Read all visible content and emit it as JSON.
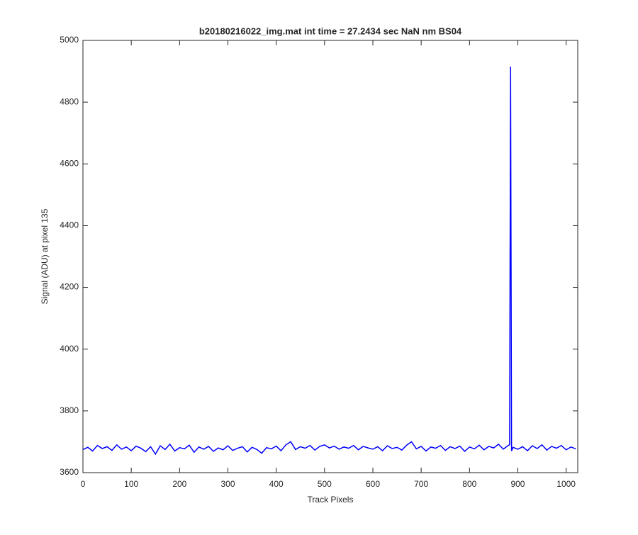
{
  "chart_data": {
    "type": "line",
    "title": "b20180216022_img.mat int time = 27.2434 sec  NaN nm BS04",
    "x_label": "Track Pixels",
    "y_label": "Signal (ADU) at pixel 135",
    "x": [
      0,
      10,
      20,
      30,
      40,
      50,
      60,
      70,
      80,
      90,
      100,
      110,
      120,
      130,
      140,
      150,
      160,
      170,
      180,
      190,
      200,
      210,
      220,
      230,
      240,
      250,
      260,
      270,
      280,
      290,
      300,
      310,
      320,
      330,
      340,
      350,
      360,
      370,
      380,
      390,
      400,
      410,
      420,
      430,
      440,
      450,
      460,
      470,
      480,
      490,
      500,
      510,
      520,
      530,
      540,
      550,
      560,
      570,
      580,
      590,
      600,
      610,
      620,
      630,
      640,
      650,
      660,
      670,
      680,
      690,
      700,
      710,
      720,
      730,
      740,
      750,
      760,
      770,
      780,
      790,
      800,
      810,
      820,
      830,
      840,
      850,
      860,
      870,
      880,
      883,
      885,
      887,
      890,
      900,
      910,
      920,
      930,
      940,
      950,
      960,
      970,
      980,
      990,
      1000,
      1010,
      1020
    ],
    "series": [
      {
        "color": "#0000ff",
        "values": [
          3675,
          3682,
          3670,
          3688,
          3678,
          3684,
          3672,
          3690,
          3676,
          3683,
          3671,
          3686,
          3679,
          3668,
          3684,
          3660,
          3687,
          3675,
          3692,
          3670,
          3681,
          3677,
          3689,
          3666,
          3683,
          3676,
          3685,
          3669,
          3680,
          3674,
          3687,
          3672,
          3679,
          3684,
          3667,
          3682,
          3675,
          3663,
          3681,
          3677,
          3686,
          3671,
          3690,
          3700,
          3675,
          3684,
          3679,
          3688,
          3673,
          3685,
          3690,
          3680,
          3686,
          3676,
          3683,
          3679,
          3688,
          3674,
          3685,
          3680,
          3676,
          3684,
          3671,
          3687,
          3678,
          3682,
          3673,
          3689,
          3700,
          3677,
          3685,
          3670,
          3683,
          3679,
          3688,
          3672,
          3684,
          3678,
          3686,
          3669,
          3683,
          3677,
          3689,
          3674,
          3685,
          3680,
          3692,
          3676,
          3688,
          3690,
          4915,
          3670,
          3682,
          3676,
          3684,
          3671,
          3687,
          3678,
          3690,
          3673,
          3685,
          3679,
          3688,
          3674,
          3683,
          3677
        ]
      }
    ],
    "xlim": [
      0,
      1024
    ],
    "ylim": [
      3600,
      5000
    ],
    "xticks": [
      0,
      100,
      200,
      300,
      400,
      500,
      600,
      700,
      800,
      900,
      1000
    ],
    "yticks": [
      3600,
      3800,
      4000,
      4200,
      4400,
      4600,
      4800,
      5000
    ]
  }
}
